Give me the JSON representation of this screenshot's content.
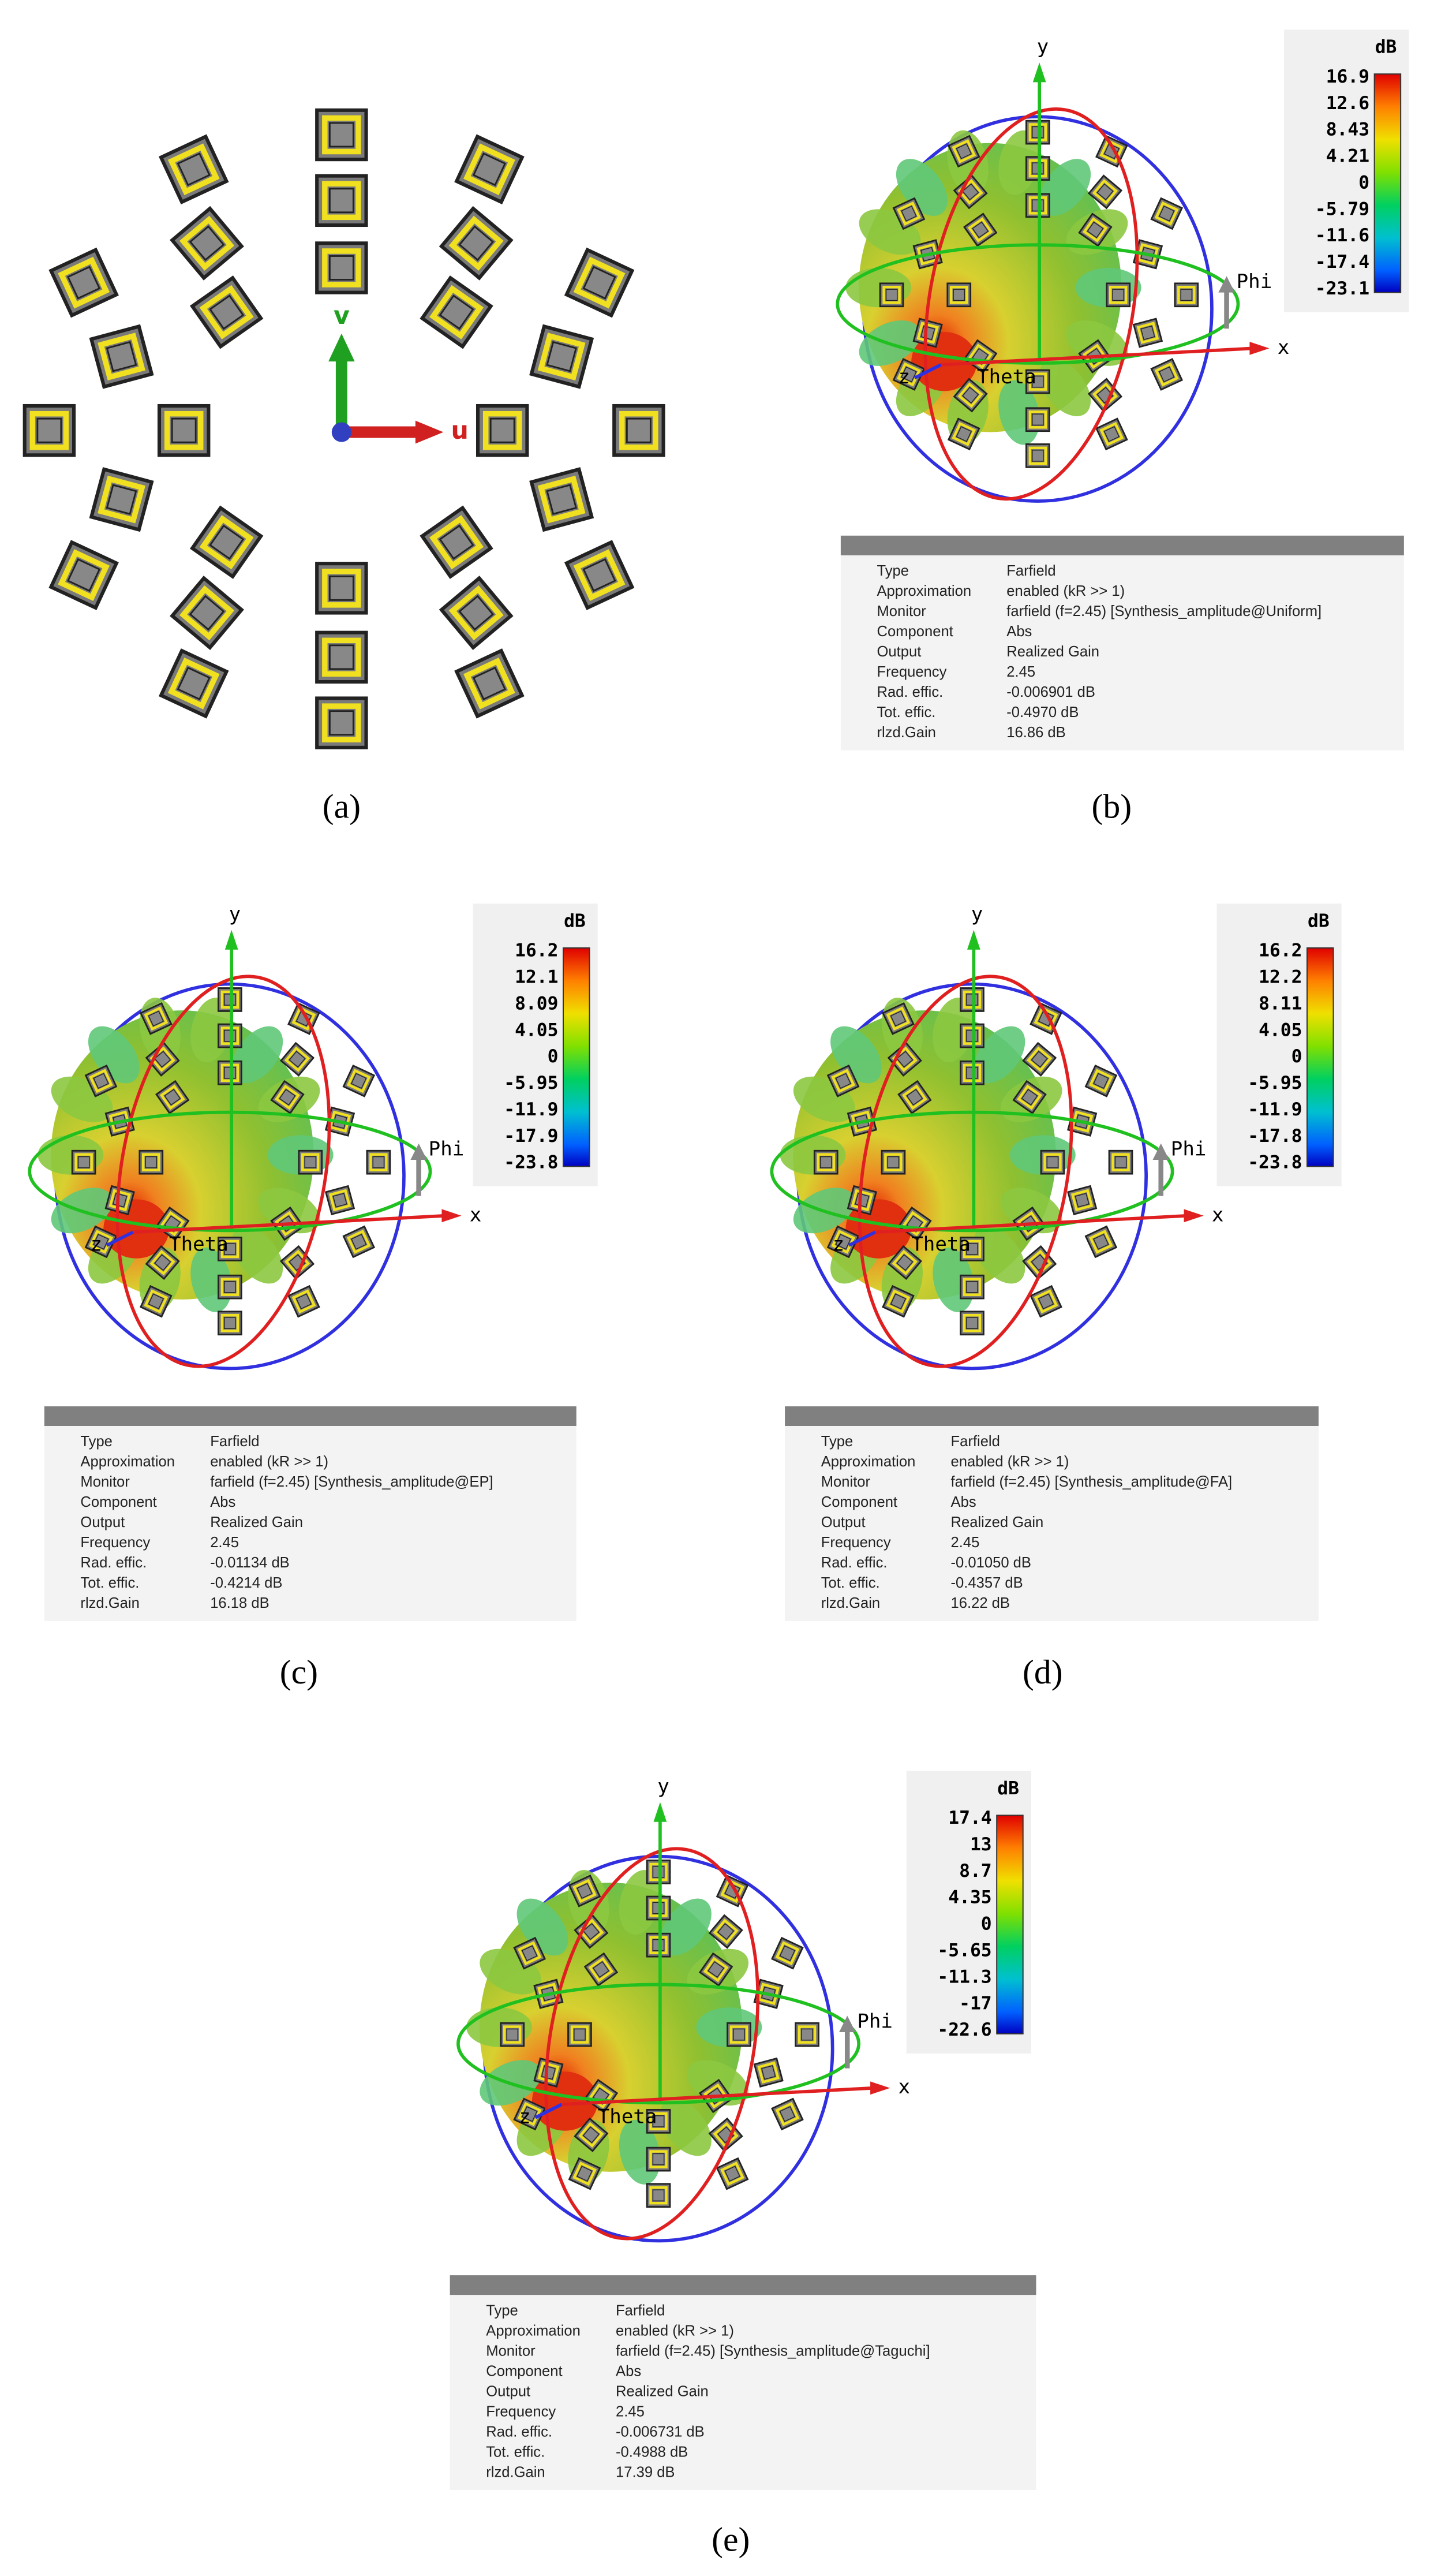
{
  "panels": [
    {
      "label": "(a)",
      "axes": {
        "v": "v",
        "u": "u"
      }
    },
    {
      "label": "(b)",
      "axes": {
        "x": "x",
        "y": "y",
        "z": "z",
        "phi": "Phi",
        "theta": "Theta"
      },
      "colorbar": {
        "unit": "dB",
        "ticks": [
          "16.9",
          "12.6",
          "8.43",
          "4.21",
          "0",
          "-5.79",
          "-11.6",
          "-17.4",
          "-23.1"
        ]
      },
      "info": [
        [
          "Type",
          "Farfield"
        ],
        [
          "Approximation",
          "enabled (kR >> 1)"
        ],
        [
          "Monitor",
          "farfield (f=2.45) [Synthesis_amplitude@Uniform]"
        ],
        [
          "Component",
          "Abs"
        ],
        [
          "Output",
          "Realized Gain"
        ],
        [
          "Frequency",
          "2.45"
        ],
        [
          "Rad. effic.",
          "-0.006901 dB"
        ],
        [
          "Tot. effic.",
          "-0.4970 dB"
        ],
        [
          "rlzd.Gain",
          "16.86 dB"
        ]
      ]
    },
    {
      "label": "(c)",
      "axes": {
        "x": "x",
        "y": "y",
        "z": "z",
        "phi": "Phi",
        "theta": "Theta"
      },
      "colorbar": {
        "unit": "dB",
        "ticks": [
          "16.2",
          "12.1",
          "8.09",
          "4.05",
          "0",
          "-5.95",
          "-11.9",
          "-17.9",
          "-23.8"
        ]
      },
      "info": [
        [
          "Type",
          "Farfield"
        ],
        [
          "Approximation",
          "enabled (kR >> 1)"
        ],
        [
          "Monitor",
          "farfield (f=2.45) [Synthesis_amplitude@EP]"
        ],
        [
          "Component",
          "Abs"
        ],
        [
          "Output",
          "Realized Gain"
        ],
        [
          "Frequency",
          "2.45"
        ],
        [
          "Rad. effic.",
          "-0.01134 dB"
        ],
        [
          "Tot. effic.",
          "-0.4214 dB"
        ],
        [
          "rlzd.Gain",
          "16.18 dB"
        ]
      ]
    },
    {
      "label": "(d)",
      "axes": {
        "x": "x",
        "y": "y",
        "z": "z",
        "phi": "Phi",
        "theta": "Theta"
      },
      "colorbar": {
        "unit": "dB",
        "ticks": [
          "16.2",
          "12.2",
          "8.11",
          "4.05",
          "0",
          "-5.95",
          "-11.9",
          "-17.8",
          "-23.8"
        ]
      },
      "info": [
        [
          "Type",
          "Farfield"
        ],
        [
          "Approximation",
          "enabled (kR >> 1)"
        ],
        [
          "Monitor",
          "farfield (f=2.45) [Synthesis_amplitude@FA]"
        ],
        [
          "Component",
          "Abs"
        ],
        [
          "Output",
          "Realized Gain"
        ],
        [
          "Frequency",
          "2.45"
        ],
        [
          "Rad. effic.",
          "-0.01050 dB"
        ],
        [
          "Tot. effic.",
          "-0.4357 dB"
        ],
        [
          "rlzd.Gain",
          "16.22 dB"
        ]
      ]
    },
    {
      "label": "(e)",
      "axes": {
        "x": "x",
        "y": "y",
        "z": "z",
        "phi": "Phi",
        "theta": "Theta"
      },
      "colorbar": {
        "unit": "dB",
        "ticks": [
          "17.4",
          "13",
          "8.7",
          "4.35",
          "0",
          "-5.65",
          "-11.3",
          "-17",
          "-22.6"
        ]
      },
      "info": [
        [
          "Type",
          "Farfield"
        ],
        [
          "Approximation",
          "enabled (kR >> 1)"
        ],
        [
          "Monitor",
          "farfield (f=2.45) [Synthesis_amplitude@Taguchi]"
        ],
        [
          "Component",
          "Abs"
        ],
        [
          "Output",
          "Realized Gain"
        ],
        [
          "Frequency",
          "2.45"
        ],
        [
          "Rad. effic.",
          "-0.006731 dB"
        ],
        [
          "Tot. effic.",
          "-0.4988 dB"
        ],
        [
          "rlzd.Gain",
          "17.39 dB"
        ]
      ]
    }
  ]
}
